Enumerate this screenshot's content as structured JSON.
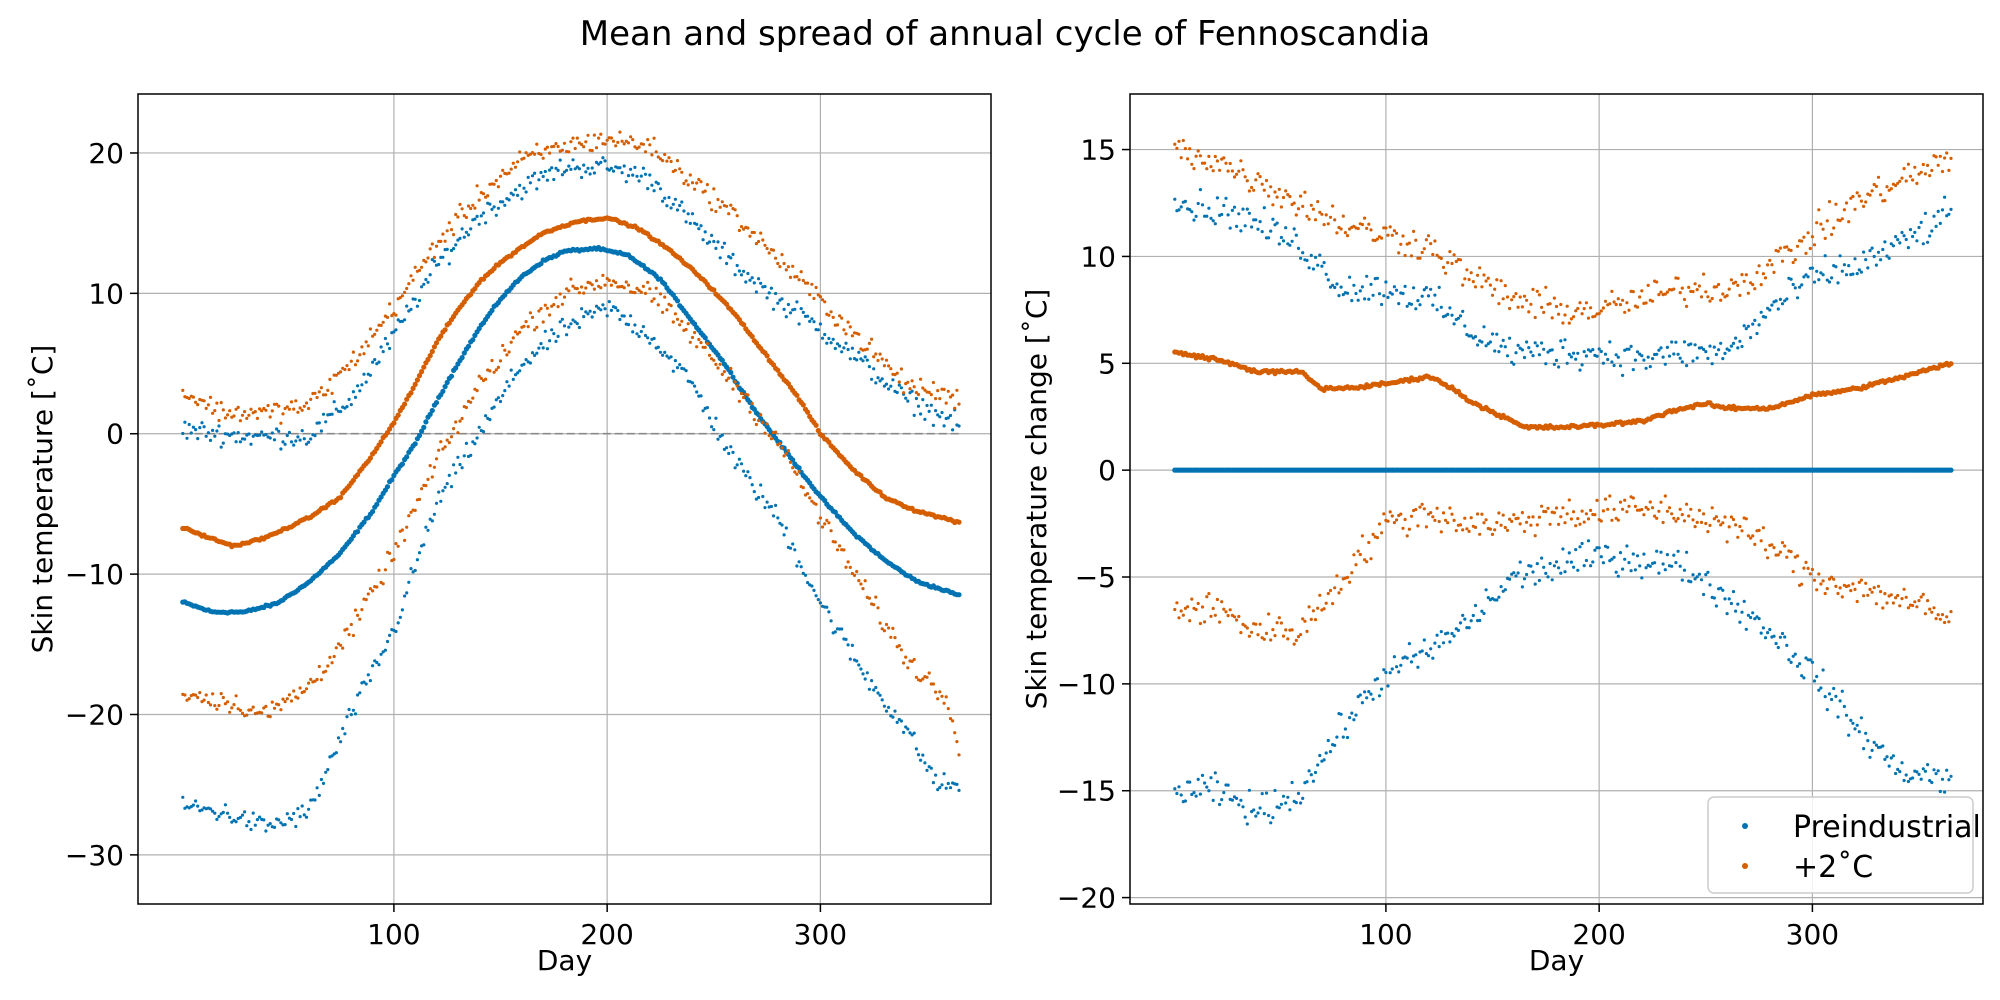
{
  "figure": {
    "title": "Mean and spread of annual cycle of Fennoscandia"
  },
  "chart_data": [
    {
      "type": "scatter",
      "xlabel": "Day",
      "ylabel": "Skin temperature [˚C]",
      "xlim": [
        -20,
        380
      ],
      "ylim": [
        -33.5,
        24.2
      ],
      "x_ticks": [
        100,
        200,
        300
      ],
      "x_tick_labels": [
        "100",
        "200",
        "300"
      ],
      "y_ticks": [
        20,
        10,
        0,
        -10,
        -20,
        -30
      ],
      "y_tick_labels": [
        "20",
        "10",
        "0",
        "−10",
        "−20",
        "−30"
      ],
      "grid": true,
      "reference_line": 0,
      "x_range": [
        1,
        365
      ],
      "series": [
        {
          "group": "preindustrial",
          "kind": "mean",
          "color": "#0173b2",
          "anchors": [
            [
              1,
              -12
            ],
            [
              15,
              -12.7
            ],
            [
              30,
              -12.7
            ],
            [
              45,
              -12.1
            ],
            [
              60,
              -10.6
            ],
            [
              75,
              -8.5
            ],
            [
              90,
              -5.5
            ],
            [
              100,
              -3
            ],
            [
              110,
              -0.7
            ],
            [
              120,
              2.3
            ],
            [
              130,
              5
            ],
            [
              140,
              7.5
            ],
            [
              150,
              9.6
            ],
            [
              160,
              11.2
            ],
            [
              170,
              12.3
            ],
            [
              180,
              13
            ],
            [
              195,
              13.2
            ],
            [
              210,
              12.7
            ],
            [
              225,
              11
            ],
            [
              240,
              8
            ],
            [
              255,
              5
            ],
            [
              270,
              1.5
            ],
            [
              285,
              -1.5
            ],
            [
              300,
              -4.5
            ],
            [
              315,
              -7
            ],
            [
              330,
              -9
            ],
            [
              345,
              -10.5
            ],
            [
              365,
              -11.5
            ]
          ]
        },
        {
          "group": "preindustrial",
          "kind": "upper",
          "color": "#0173b2",
          "anchors": [
            [
              1,
              0.3
            ],
            [
              30,
              -0.2
            ],
            [
              60,
              -0.2
            ],
            [
              80,
              2.5
            ],
            [
              100,
              7
            ],
            [
              120,
              12
            ],
            [
              140,
              15.5
            ],
            [
              160,
              17.5
            ],
            [
              180,
              19
            ],
            [
              200,
              19
            ],
            [
              220,
              18.2
            ],
            [
              240,
              15
            ],
            [
              260,
              12
            ],
            [
              280,
              9.5
            ],
            [
              300,
              7.5
            ],
            [
              320,
              5
            ],
            [
              340,
              2.5
            ],
            [
              365,
              0.6
            ]
          ]
        },
        {
          "group": "preindustrial",
          "kind": "lower",
          "color": "#0173b2",
          "anchors": [
            [
              1,
              -26.5
            ],
            [
              20,
              -27
            ],
            [
              40,
              -28
            ],
            [
              60,
              -27
            ],
            [
              80,
              -20
            ],
            [
              100,
              -14
            ],
            [
              120,
              -5
            ],
            [
              140,
              0
            ],
            [
              160,
              5
            ],
            [
              180,
              7.5
            ],
            [
              200,
              9
            ],
            [
              220,
              7
            ],
            [
              240,
              3.5
            ],
            [
              260,
              -2
            ],
            [
              280,
              -6
            ],
            [
              300,
              -12
            ],
            [
              320,
              -17
            ],
            [
              340,
              -21
            ],
            [
              355,
              -25
            ],
            [
              365,
              -25
            ]
          ]
        },
        {
          "group": "warming_2c",
          "kind": "mean",
          "color": "#d55e00",
          "anchors": [
            [
              1,
              -6.7
            ],
            [
              15,
              -7.5
            ],
            [
              25,
              -8
            ],
            [
              40,
              -7.4
            ],
            [
              60,
              -6
            ],
            [
              75,
              -4.5
            ],
            [
              90,
              -1.5
            ],
            [
              100,
              0.8
            ],
            [
              110,
              3.5
            ],
            [
              120,
              6.5
            ],
            [
              130,
              8.8
            ],
            [
              140,
              10.8
            ],
            [
              150,
              12.2
            ],
            [
              160,
              13.3
            ],
            [
              170,
              14.3
            ],
            [
              185,
              15.1
            ],
            [
              200,
              15.4
            ],
            [
              215,
              14.6
            ],
            [
              230,
              13
            ],
            [
              245,
              11
            ],
            [
              260,
              8.5
            ],
            [
              275,
              5.5
            ],
            [
              290,
              2.5
            ],
            [
              300,
              0
            ],
            [
              315,
              -2.5
            ],
            [
              330,
              -4.5
            ],
            [
              345,
              -5.5
            ],
            [
              365,
              -6.3
            ]
          ]
        },
        {
          "group": "warming_2c",
          "kind": "upper",
          "color": "#d55e00",
          "anchors": [
            [
              1,
              3
            ],
            [
              20,
              1.5
            ],
            [
              40,
              1.5
            ],
            [
              60,
              2
            ],
            [
              80,
              5
            ],
            [
              100,
              9
            ],
            [
              120,
              13.5
            ],
            [
              140,
              17
            ],
            [
              160,
              19.5
            ],
            [
              180,
              20.5
            ],
            [
              200,
              21
            ],
            [
              220,
              20.5
            ],
            [
              240,
              18
            ],
            [
              260,
              15.5
            ],
            [
              280,
              12.5
            ],
            [
              300,
              9.5
            ],
            [
              320,
              6.5
            ],
            [
              340,
              3.5
            ],
            [
              365,
              2.5
            ]
          ]
        },
        {
          "group": "warming_2c",
          "kind": "lower",
          "color": "#d55e00",
          "anchors": [
            [
              1,
              -18.5
            ],
            [
              20,
              -19
            ],
            [
              40,
              -20
            ],
            [
              60,
              -18
            ],
            [
              80,
              -14
            ],
            [
              100,
              -8.5
            ],
            [
              120,
              -2
            ],
            [
              140,
              3.5
            ],
            [
              160,
              7.5
            ],
            [
              180,
              10
            ],
            [
              200,
              11
            ],
            [
              220,
              10
            ],
            [
              240,
              7
            ],
            [
              260,
              3.5
            ],
            [
              280,
              -0.5
            ],
            [
              300,
              -6
            ],
            [
              320,
              -11
            ],
            [
              340,
              -16
            ],
            [
              360,
              -19
            ],
            [
              365,
              -22
            ]
          ]
        }
      ]
    },
    {
      "type": "scatter",
      "xlabel": "Day",
      "ylabel": "Skin temperature change [˚C]",
      "xlim": [
        -20,
        380
      ],
      "ylim": [
        -20.3,
        17.6
      ],
      "x_ticks": [
        100,
        200,
        300
      ],
      "x_tick_labels": [
        "100",
        "200",
        "300"
      ],
      "y_ticks": [
        15,
        10,
        5,
        0,
        -5,
        -10,
        -15,
        -20
      ],
      "y_tick_labels": [
        "15",
        "10",
        "5",
        "0",
        "−5",
        "−10",
        "−15",
        "−20"
      ],
      "grid": true,
      "legend": {
        "position": "lower-right",
        "entries": [
          "Preindustrial",
          "+2˚C"
        ]
      },
      "x_range": [
        1,
        365
      ],
      "series": [
        {
          "name": "Preindustrial",
          "kind": "mean",
          "color": "#0173b2",
          "anchors": [
            [
              1,
              0
            ],
            [
              365,
              0
            ]
          ]
        },
        {
          "group": "preindustrial",
          "kind": "upper",
          "color": "#0173b2",
          "anchors": [
            [
              1,
              12.5
            ],
            [
              30,
              12
            ],
            [
              60,
              10.5
            ],
            [
              80,
              8.5
            ],
            [
              100,
              8.5
            ],
            [
              120,
              8
            ],
            [
              140,
              6.5
            ],
            [
              160,
              5.5
            ],
            [
              180,
              5.5
            ],
            [
              200,
              5.5
            ],
            [
              220,
              5.2
            ],
            [
              240,
              5.5
            ],
            [
              260,
              5.5
            ],
            [
              280,
              7.5
            ],
            [
              300,
              9
            ],
            [
              320,
              9.5
            ],
            [
              340,
              10.5
            ],
            [
              365,
              12
            ]
          ]
        },
        {
          "group": "preindustrial",
          "kind": "lower",
          "color": "#0173b2",
          "anchors": [
            [
              1,
              -15
            ],
            [
              20,
              -15
            ],
            [
              40,
              -16
            ],
            [
              60,
              -15
            ],
            [
              80,
              -12
            ],
            [
              100,
              -9.5
            ],
            [
              120,
              -8.5
            ],
            [
              140,
              -7
            ],
            [
              160,
              -5
            ],
            [
              180,
              -4.5
            ],
            [
              200,
              -4
            ],
            [
              220,
              -4.2
            ],
            [
              240,
              -4.5
            ],
            [
              260,
              -6
            ],
            [
              280,
              -7.5
            ],
            [
              300,
              -9.5
            ],
            [
              320,
              -12
            ],
            [
              340,
              -14
            ],
            [
              365,
              -14.5
            ]
          ]
        },
        {
          "name": "+2˚C",
          "kind": "mean",
          "color": "#d55e00",
          "anchors": [
            [
              1,
              5.5
            ],
            [
              20,
              5.2
            ],
            [
              40,
              4.6
            ],
            [
              60,
              4.6
            ],
            [
              70,
              3.8
            ],
            [
              90,
              3.9
            ],
            [
              110,
              4.2
            ],
            [
              120,
              4.4
            ],
            [
              130,
              3.9
            ],
            [
              140,
              3.2
            ],
            [
              155,
              2.5
            ],
            [
              165,
              2
            ],
            [
              180,
              2
            ],
            [
              200,
              2.1
            ],
            [
              220,
              2.3
            ],
            [
              235,
              2.8
            ],
            [
              250,
              3.1
            ],
            [
              260,
              2.9
            ],
            [
              280,
              2.9
            ],
            [
              300,
              3.5
            ],
            [
              320,
              3.8
            ],
            [
              340,
              4.3
            ],
            [
              365,
              5
            ]
          ]
        },
        {
          "group": "warming_2c",
          "kind": "upper",
          "color": "#d55e00",
          "anchors": [
            [
              1,
              15
            ],
            [
              20,
              14.5
            ],
            [
              40,
              13.5
            ],
            [
              60,
              12.5
            ],
            [
              80,
              11.5
            ],
            [
              100,
              11
            ],
            [
              120,
              10.5
            ],
            [
              140,
              9
            ],
            [
              160,
              8
            ],
            [
              180,
              7.5
            ],
            [
              200,
              7.5
            ],
            [
              220,
              8
            ],
            [
              240,
              8.5
            ],
            [
              260,
              8.5
            ],
            [
              280,
              9.5
            ],
            [
              300,
              11
            ],
            [
              320,
              12.5
            ],
            [
              340,
              13.5
            ],
            [
              365,
              14.5
            ]
          ]
        },
        {
          "group": "warming_2c",
          "kind": "lower",
          "color": "#d55e00",
          "anchors": [
            [
              1,
              -6.5
            ],
            [
              20,
              -6.5
            ],
            [
              40,
              -7.5
            ],
            [
              60,
              -7.5
            ],
            [
              80,
              -5
            ],
            [
              100,
              -2.5
            ],
            [
              120,
              -2
            ],
            [
              140,
              -2.5
            ],
            [
              160,
              -2.5
            ],
            [
              180,
              -2
            ],
            [
              200,
              -2
            ],
            [
              220,
              -1.8
            ],
            [
              240,
              -2
            ],
            [
              260,
              -2.5
            ],
            [
              280,
              -3.5
            ],
            [
              300,
              -5
            ],
            [
              320,
              -5.5
            ],
            [
              340,
              -6
            ],
            [
              365,
              -7
            ]
          ]
        }
      ]
    }
  ]
}
